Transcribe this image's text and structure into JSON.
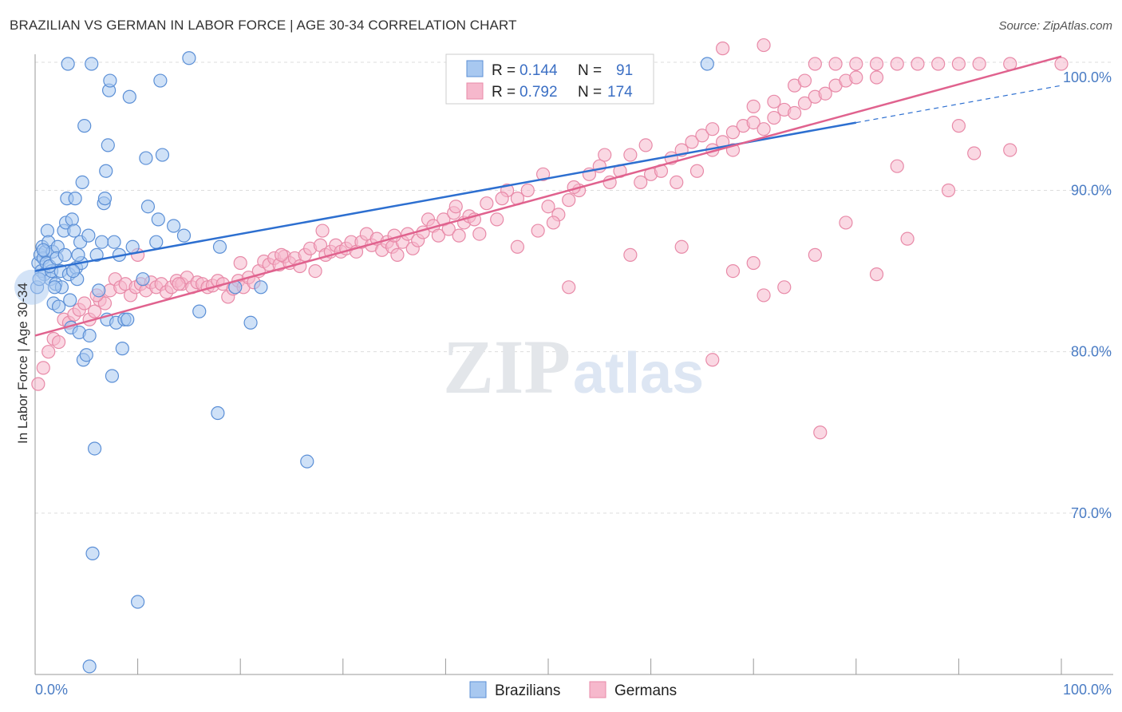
{
  "title": "BRAZILIAN VS GERMAN IN LABOR FORCE | AGE 30-34 CORRELATION CHART",
  "source": "Source: ZipAtlas.com",
  "watermark": {
    "zip": "ZIP",
    "atlas": "atlas"
  },
  "colors": {
    "blue_fill": "#a8c8f0",
    "blue_stroke": "#5b8fd6",
    "blue_line": "#2d6fd0",
    "pink_fill": "#f6b8cc",
    "pink_stroke": "#e88aa8",
    "pink_line": "#e0628e",
    "tick": "#4a7cc4",
    "grid": "#dddddd"
  },
  "legend": {
    "rows": [
      {
        "r_label": "R =",
        "r_value": "0.144",
        "n_label": "N =",
        "n_value": "91"
      },
      {
        "r_label": "R =",
        "r_value": "0.792",
        "n_label": "N =",
        "n_value": "174"
      }
    ],
    "bottom": [
      "Brazilians",
      "Germans"
    ]
  },
  "chart_data": {
    "type": "scatter",
    "title": "BRAZILIAN VS GERMAN IN LABOR FORCE | AGE 30-34 CORRELATION CHART",
    "ylabel": "In Labor Force | Age 30-34",
    "xlabel": "",
    "x_tick_labels": [
      "0.0%",
      "100.0%"
    ],
    "y_tick_labels": [
      "70.0%",
      "80.0%",
      "90.0%",
      "100.0%"
    ],
    "xlim": [
      0,
      100
    ],
    "ylim": [
      60,
      100
    ],
    "grid": true,
    "legend_position": "top-center",
    "series": [
      {
        "name": "Brazilians",
        "r": 0.144,
        "n": 91,
        "trend": {
          "x": [
            0,
            80
          ],
          "y": [
            85.0,
            94.2
          ],
          "dashed_x": [
            80,
            100
          ],
          "dashed_y": [
            94.2,
            96.5
          ]
        },
        "points": [
          [
            0.3,
            85.5
          ],
          [
            0.5,
            86.0
          ],
          [
            0.6,
            85.0
          ],
          [
            0.7,
            86.5
          ],
          [
            0.8,
            85.8
          ],
          [
            0.9,
            84.8
          ],
          [
            1.0,
            86.2
          ],
          [
            1.1,
            85.5
          ],
          [
            1.2,
            87.5
          ],
          [
            1.3,
            86.8
          ],
          [
            1.5,
            84.5
          ],
          [
            1.6,
            85.0
          ],
          [
            1.7,
            86.2
          ],
          [
            1.8,
            83.0
          ],
          [
            2.0,
            84.2
          ],
          [
            2.2,
            86.5
          ],
          [
            2.3,
            82.8
          ],
          [
            2.5,
            85.0
          ],
          [
            2.6,
            84.0
          ],
          [
            2.8,
            87.5
          ],
          [
            3.0,
            88.0
          ],
          [
            3.1,
            89.5
          ],
          [
            3.3,
            84.8
          ],
          [
            3.4,
            83.2
          ],
          [
            3.5,
            81.5
          ],
          [
            3.6,
            88.2
          ],
          [
            3.8,
            87.5
          ],
          [
            3.9,
            89.5
          ],
          [
            4.0,
            85.2
          ],
          [
            4.1,
            84.5
          ],
          [
            4.3,
            81.2
          ],
          [
            4.4,
            86.8
          ],
          [
            4.5,
            85.5
          ],
          [
            4.6,
            90.5
          ],
          [
            4.7,
            79.5
          ],
          [
            4.8,
            94.0
          ],
          [
            5.0,
            79.8
          ],
          [
            5.2,
            87.2
          ],
          [
            5.3,
            81.0
          ],
          [
            3.2,
            99.8
          ],
          [
            5.5,
            99.8
          ],
          [
            5.8,
            74.0
          ],
          [
            6.0,
            86.0
          ],
          [
            6.2,
            83.8
          ],
          [
            6.5,
            86.8
          ],
          [
            6.7,
            89.2
          ],
          [
            6.8,
            89.5
          ],
          [
            6.9,
            91.2
          ],
          [
            7.0,
            82.0
          ],
          [
            7.1,
            92.8
          ],
          [
            7.2,
            96.2
          ],
          [
            7.3,
            96.8
          ],
          [
            7.5,
            78.5
          ],
          [
            7.7,
            86.8
          ],
          [
            7.9,
            81.8
          ],
          [
            8.2,
            86.0
          ],
          [
            8.5,
            80.2
          ],
          [
            8.7,
            82.0
          ],
          [
            9.0,
            82.0
          ],
          [
            9.2,
            95.8
          ],
          [
            9.5,
            86.5
          ],
          [
            10.5,
            84.5
          ],
          [
            10.8,
            92.0
          ],
          [
            11.0,
            89.0
          ],
          [
            11.8,
            86.8
          ],
          [
            12.0,
            88.2
          ],
          [
            12.2,
            96.8
          ],
          [
            12.4,
            92.2
          ],
          [
            13.5,
            87.8
          ],
          [
            14.5,
            87.2
          ],
          [
            15.0,
            98.2
          ],
          [
            16.0,
            82.5
          ],
          [
            17.8,
            76.2
          ],
          [
            18.0,
            86.5
          ],
          [
            19.5,
            84.0
          ],
          [
            21.0,
            81.8
          ],
          [
            22.0,
            84.0
          ],
          [
            26.5,
            73.2
          ],
          [
            5.6,
            67.5
          ],
          [
            10.0,
            64.5
          ],
          [
            5.3,
            60.5
          ],
          [
            0.2,
            84.0
          ],
          [
            0.4,
            84.5
          ],
          [
            0.8,
            86.3
          ],
          [
            1.4,
            85.3
          ],
          [
            2.1,
            85.8
          ],
          [
            2.9,
            86.0
          ],
          [
            3.7,
            85.0
          ],
          [
            4.2,
            86.0
          ],
          [
            65.5,
            100.0
          ],
          [
            1.9,
            84.0
          ]
        ]
      },
      {
        "name": "Germans",
        "r": 0.792,
        "n": 174,
        "trend": {
          "x": [
            0,
            100
          ],
          "y": [
            81.0,
            98.3
          ]
        },
        "points": [
          [
            0.3,
            78.0
          ],
          [
            0.8,
            79.0
          ],
          [
            1.3,
            80.0
          ],
          [
            1.8,
            80.8
          ],
          [
            2.3,
            80.6
          ],
          [
            2.8,
            82.0
          ],
          [
            3.3,
            81.8
          ],
          [
            3.8,
            82.3
          ],
          [
            4.3,
            82.6
          ],
          [
            4.8,
            83.0
          ],
          [
            5.3,
            82.0
          ],
          [
            5.8,
            82.5
          ],
          [
            6.3,
            83.2
          ],
          [
            6.8,
            83.0
          ],
          [
            7.3,
            83.8
          ],
          [
            7.8,
            84.5
          ],
          [
            8.3,
            84.0
          ],
          [
            8.8,
            84.2
          ],
          [
            9.3,
            83.5
          ],
          [
            9.8,
            84.0
          ],
          [
            10.3,
            84.2
          ],
          [
            10.8,
            83.8
          ],
          [
            11.3,
            84.3
          ],
          [
            11.8,
            84.0
          ],
          [
            12.3,
            84.2
          ],
          [
            12.8,
            83.7
          ],
          [
            13.3,
            84.0
          ],
          [
            13.8,
            84.4
          ],
          [
            14.3,
            84.2
          ],
          [
            14.8,
            84.6
          ],
          [
            15.3,
            84.0
          ],
          [
            15.8,
            84.3
          ],
          [
            16.3,
            84.2
          ],
          [
            16.8,
            84.0
          ],
          [
            17.3,
            84.1
          ],
          [
            17.8,
            84.4
          ],
          [
            18.3,
            84.2
          ],
          [
            18.8,
            83.4
          ],
          [
            19.3,
            83.9
          ],
          [
            19.8,
            84.4
          ],
          [
            20.3,
            84.0
          ],
          [
            20.8,
            84.6
          ],
          [
            21.3,
            84.3
          ],
          [
            21.8,
            85.0
          ],
          [
            22.3,
            85.6
          ],
          [
            22.8,
            85.4
          ],
          [
            23.3,
            85.8
          ],
          [
            23.8,
            85.4
          ],
          [
            24.3,
            85.9
          ],
          [
            24.8,
            85.5
          ],
          [
            25.3,
            85.8
          ],
          [
            25.8,
            85.3
          ],
          [
            26.3,
            86.0
          ],
          [
            26.8,
            86.4
          ],
          [
            27.3,
            85.0
          ],
          [
            27.8,
            86.6
          ],
          [
            28.3,
            86.0
          ],
          [
            28.8,
            86.2
          ],
          [
            29.3,
            86.6
          ],
          [
            29.8,
            86.2
          ],
          [
            30.3,
            86.4
          ],
          [
            30.8,
            86.8
          ],
          [
            31.3,
            86.2
          ],
          [
            31.8,
            86.8
          ],
          [
            32.3,
            87.3
          ],
          [
            32.8,
            86.6
          ],
          [
            33.3,
            87.0
          ],
          [
            33.8,
            86.3
          ],
          [
            34.3,
            86.8
          ],
          [
            34.8,
            86.5
          ],
          [
            35.3,
            86.0
          ],
          [
            35.8,
            86.8
          ],
          [
            36.3,
            87.3
          ],
          [
            36.8,
            86.4
          ],
          [
            37.3,
            86.9
          ],
          [
            37.8,
            87.4
          ],
          [
            38.3,
            88.2
          ],
          [
            38.8,
            87.8
          ],
          [
            39.3,
            87.2
          ],
          [
            39.8,
            88.2
          ],
          [
            40.3,
            87.6
          ],
          [
            40.8,
            88.6
          ],
          [
            41.3,
            87.2
          ],
          [
            41.8,
            88.0
          ],
          [
            42.3,
            88.4
          ],
          [
            42.8,
            88.2
          ],
          [
            43.3,
            87.3
          ],
          [
            44.0,
            89.2
          ],
          [
            45.0,
            88.2
          ],
          [
            46.0,
            90.0
          ],
          [
            47.0,
            89.5
          ],
          [
            48.0,
            90.0
          ],
          [
            49.0,
            87.5
          ],
          [
            50.0,
            89.0
          ],
          [
            51.0,
            88.5
          ],
          [
            52.0,
            89.4
          ],
          [
            53.0,
            90.0
          ],
          [
            54.0,
            91.0
          ],
          [
            55.0,
            91.5
          ],
          [
            56.0,
            90.5
          ],
          [
            57.0,
            91.2
          ],
          [
            58.0,
            92.2
          ],
          [
            59.0,
            90.5
          ],
          [
            60.0,
            91.0
          ],
          [
            61.0,
            91.2
          ],
          [
            62.0,
            92.0
          ],
          [
            63.0,
            92.5
          ],
          [
            64.0,
            93.0
          ],
          [
            65.0,
            93.4
          ],
          [
            66.0,
            92.5
          ],
          [
            67.0,
            93.0
          ],
          [
            68.0,
            93.6
          ],
          [
            69.0,
            94.0
          ],
          [
            70.0,
            94.2
          ],
          [
            71.0,
            93.8
          ],
          [
            72.0,
            94.5
          ],
          [
            73.0,
            95.0
          ],
          [
            74.0,
            94.8
          ],
          [
            75.0,
            95.4
          ],
          [
            76.0,
            95.8
          ],
          [
            77.0,
            96.0
          ],
          [
            78.0,
            96.5
          ],
          [
            79.0,
            96.8
          ],
          [
            80.0,
            97.0
          ],
          [
            6.0,
            83.5
          ],
          [
            10.0,
            86.0
          ],
          [
            14.0,
            84.2
          ],
          [
            20.0,
            85.5
          ],
          [
            24.0,
            86.0
          ],
          [
            28.0,
            87.5
          ],
          [
            35.0,
            87.2
          ],
          [
            41.0,
            89.0
          ],
          [
            45.5,
            89.5
          ],
          [
            49.5,
            91.0
          ],
          [
            52.5,
            90.2
          ],
          [
            55.5,
            92.2
          ],
          [
            57.5,
            95.8
          ],
          [
            59.5,
            92.8
          ],
          [
            62.5,
            90.5
          ],
          [
            64.5,
            91.2
          ],
          [
            66.0,
            93.8
          ],
          [
            68.0,
            92.5
          ],
          [
            70.0,
            95.2
          ],
          [
            72.0,
            95.5
          ],
          [
            74.0,
            96.5
          ],
          [
            75.0,
            96.8
          ],
          [
            76.0,
            100.0
          ],
          [
            78.0,
            99.8
          ],
          [
            80.0,
            100.0
          ],
          [
            82.0,
            100.0
          ],
          [
            84.0,
            100.0
          ],
          [
            86.0,
            100.0
          ],
          [
            88.0,
            100.0
          ],
          [
            90.0,
            99.9
          ],
          [
            92.0,
            100.0
          ],
          [
            95.0,
            100.0
          ],
          [
            100.0,
            100.0
          ],
          [
            82.0,
            97.0
          ],
          [
            67.0,
            98.8
          ],
          [
            71.0,
            99.0
          ],
          [
            47.0,
            86.5
          ],
          [
            50.5,
            88.0
          ],
          [
            52.0,
            84.0
          ],
          [
            58.0,
            86.0
          ],
          [
            63.0,
            86.5
          ],
          [
            68.0,
            85.0
          ],
          [
            70.0,
            85.5
          ],
          [
            73.0,
            84.0
          ],
          [
            76.0,
            86.0
          ],
          [
            79.0,
            88.0
          ],
          [
            84.0,
            91.5
          ],
          [
            90.0,
            94.0
          ],
          [
            95.0,
            92.5
          ],
          [
            66.0,
            79.5
          ],
          [
            71.0,
            83.5
          ],
          [
            76.5,
            75.0
          ],
          [
            82.0,
            84.8
          ],
          [
            85.0,
            87.0
          ],
          [
            89.0,
            90.0
          ],
          [
            91.5,
            92.3
          ]
        ]
      }
    ]
  }
}
